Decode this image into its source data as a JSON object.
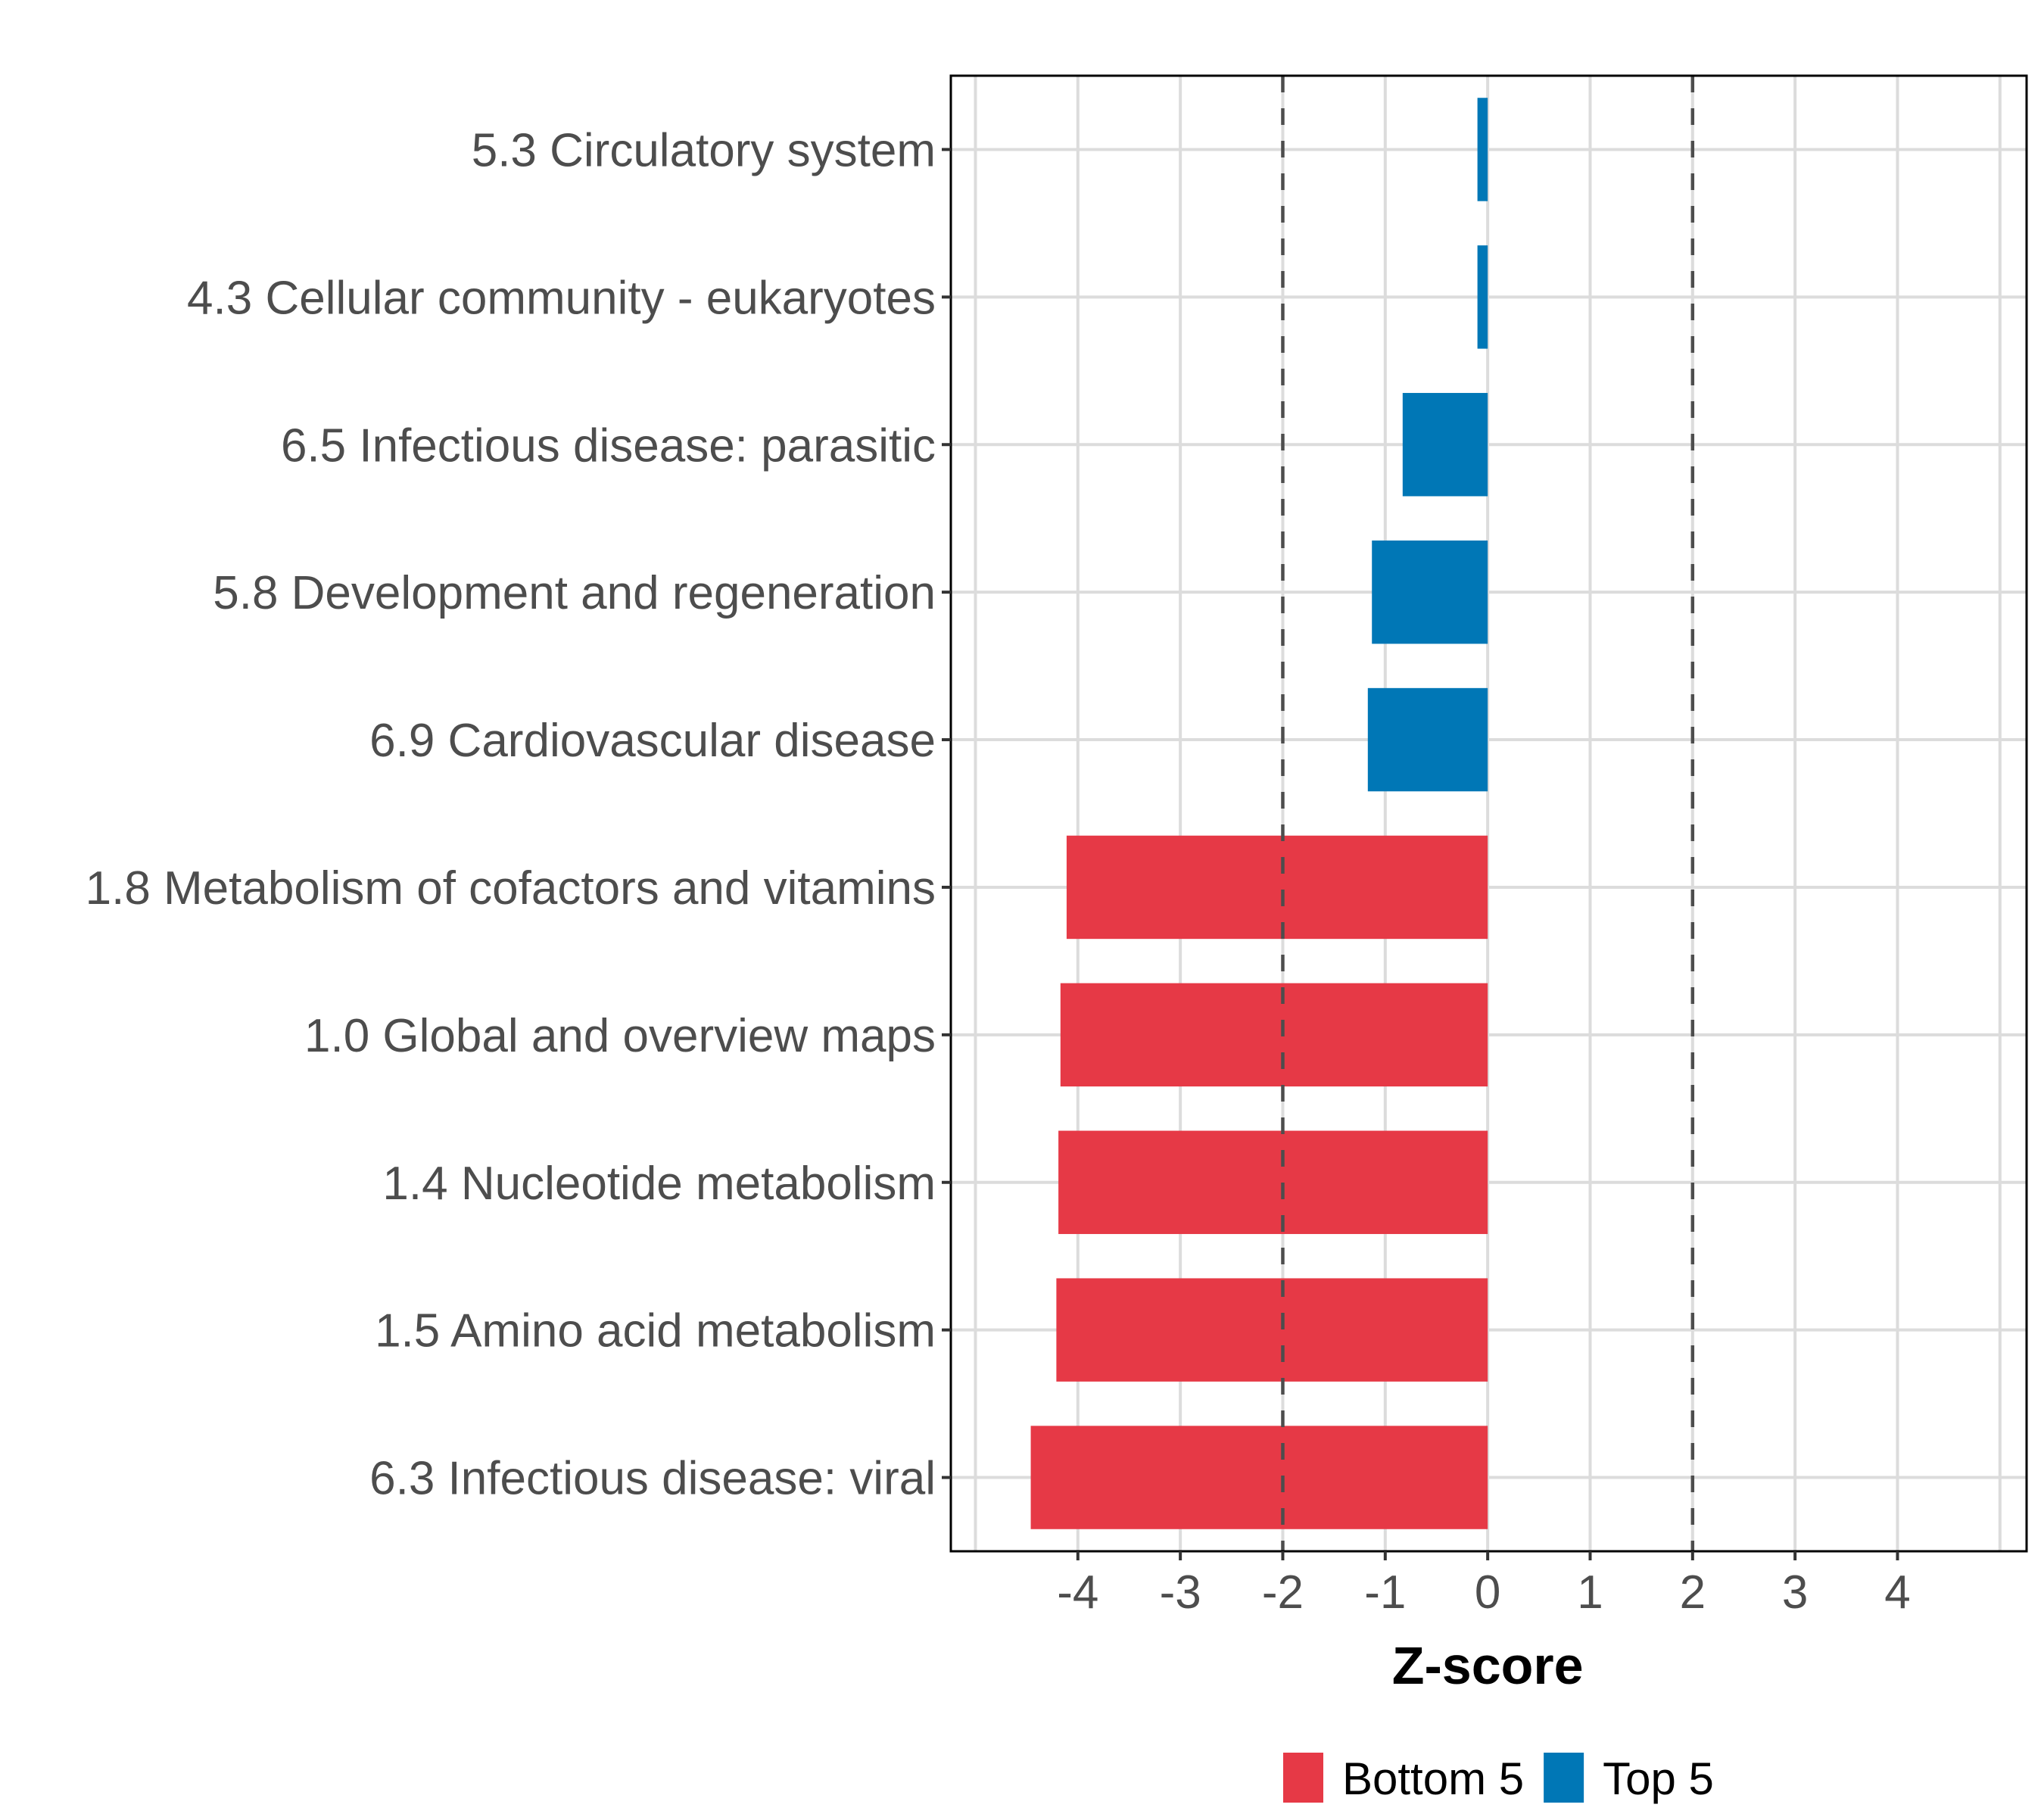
{
  "chart_data": {
    "type": "bar",
    "orientation": "horizontal",
    "title": "",
    "xlabel": "Z-score",
    "ylabel": "",
    "xlim": [
      -5.24,
      5.26
    ],
    "xticks": [
      -4,
      -3,
      -2,
      -1,
      0,
      1,
      2,
      3,
      4
    ],
    "xtick_labels": [
      "-4",
      "-3",
      "-2",
      "-1",
      "0",
      "1",
      "2",
      "3",
      "4"
    ],
    "grid": true,
    "reference_lines": [
      {
        "x": -2,
        "style": "dashed",
        "color": "#4d4d4d"
      },
      {
        "x": 2,
        "style": "dashed",
        "color": "#4d4d4d"
      }
    ],
    "categories": [
      "5.3 Circulatory system",
      "4.3 Cellular community - eukaryotes",
      "6.5 Infectious disease: parasitic",
      "5.8 Development and regeneration",
      "6.9 Cardiovascular disease",
      "1.8 Metabolism of cofactors and vitamins",
      "1.0 Global and overview maps",
      "1.4 Nucleotide metabolism",
      "1.5 Amino acid metabolism",
      "6.3 Infectious disease: viral"
    ],
    "values": [
      -0.1,
      -0.1,
      -0.83,
      -1.13,
      -1.17,
      -4.11,
      -4.17,
      -4.19,
      -4.21,
      -4.46
    ],
    "groups": [
      "Top 5",
      "Top 5",
      "Top 5",
      "Top 5",
      "Top 5",
      "Bottom 5",
      "Bottom 5",
      "Bottom 5",
      "Bottom 5",
      "Bottom 5"
    ],
    "legend": {
      "position": "bottom",
      "entries": [
        {
          "label": "Bottom 5",
          "color": "#e63946"
        },
        {
          "label": "Top 5",
          "color": "#0077b6"
        }
      ]
    },
    "colors": {
      "Bottom 5": "#e63946",
      "Top 5": "#0077b6"
    }
  }
}
